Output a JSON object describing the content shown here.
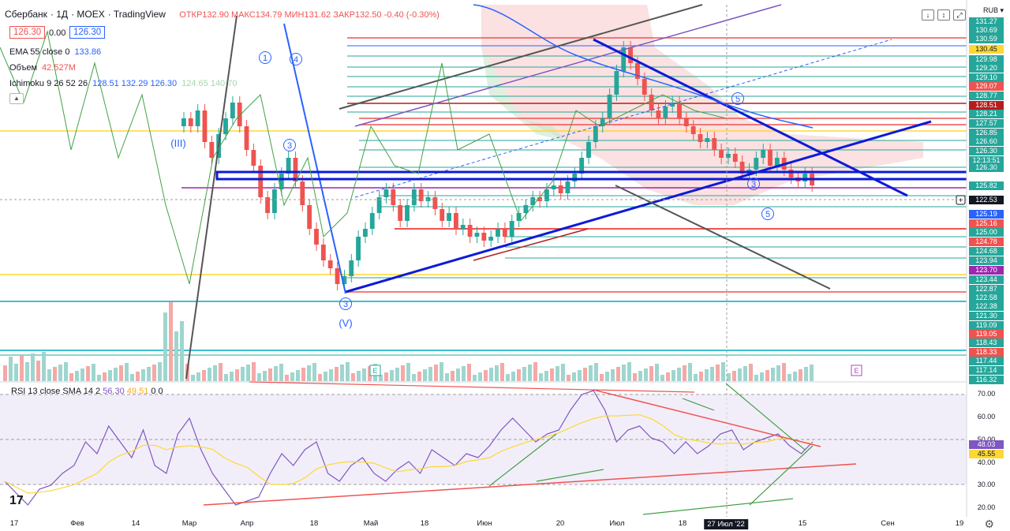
{
  "header": {
    "symbol": "Сбербанк",
    "interval": "1Д",
    "exchange": "MOEX",
    "source": "TradingView",
    "open_label": "ОТКР",
    "open": "132.90",
    "high_label": "МАКС",
    "high": "134.79",
    "low_label": "МИН",
    "low": "131.62",
    "close_label": "ЗАКР",
    "close": "132.50",
    "change": "-0.40 (-0.30%)"
  },
  "price_boxes": {
    "left": "126.30",
    "mid": "0.00",
    "right": "126.30"
  },
  "indicators": [
    {
      "name": "EMA 55 close 0",
      "value": "133.86",
      "color": "#2962ff"
    },
    {
      "name": "Объем",
      "value": "42.527M",
      "color": "#ef5350"
    },
    {
      "name": "Ichimoku 9 26 52 26",
      "value": "128.51 132.29 126.30",
      "color": "#2962ff",
      "extra": "124.65 140.70"
    }
  ],
  "rsi": {
    "label": "RSI 13 close SMA 14 2",
    "value": "56.30",
    "value2": "49.51",
    "zeros": "0 0"
  },
  "scale_label": "RUB",
  "top_buttons": [
    "↓",
    "↕",
    "⤢"
  ],
  "price_axis": [
    {
      "v": "131.27",
      "bg": "#26a69a"
    },
    {
      "v": "130.69",
      "bg": "#26a69a"
    },
    {
      "v": "130.59",
      "bg": "#26a69a"
    },
    {
      "v": "130.45",
      "bg": "#fdd835",
      "dark": true
    },
    {
      "v": "129.98",
      "bg": "#26a69a"
    },
    {
      "v": "129.20",
      "bg": "#26a69a"
    },
    {
      "v": "129.10",
      "bg": "#26a69a"
    },
    {
      "v": "129.07",
      "bg": "#ef5350"
    },
    {
      "v": "128.77",
      "bg": "#26a69a"
    },
    {
      "v": "128.51",
      "bg": "#b71c1c"
    },
    {
      "v": "128.21",
      "bg": "#26a69a"
    },
    {
      "v": "127.57",
      "bg": "#26a69a"
    },
    {
      "v": "126.85",
      "bg": "#26a69a"
    },
    {
      "v": "126.60",
      "bg": "#26a69a"
    },
    {
      "v": "126.30",
      "bg": "#26a69a"
    },
    {
      "v": "12:13:51",
      "bg": "#26a69a"
    },
    {
      "v": "126.30",
      "bg": "#26a69a"
    },
    {
      "v": "125.82",
      "bg": "#26a69a"
    },
    {
      "v": "122.53",
      "bg": "#131722"
    },
    {
      "v": "125.19",
      "bg": "#2962ff"
    },
    {
      "v": "125.16",
      "bg": "#ef5350"
    },
    {
      "v": "125.00",
      "bg": "#26a69a"
    },
    {
      "v": "124.78",
      "bg": "#ef5350"
    },
    {
      "v": "124.68",
      "bg": "#26a69a"
    },
    {
      "v": "123.94",
      "bg": "#26a69a"
    },
    {
      "v": "123.70",
      "bg": "#9c27b0"
    },
    {
      "v": "123.44",
      "bg": "#26a69a"
    },
    {
      "v": "122.87",
      "bg": "#26a69a"
    },
    {
      "v": "122.58",
      "bg": "#26a69a"
    },
    {
      "v": "122.38",
      "bg": "#26a69a"
    },
    {
      "v": "121.30",
      "bg": "#26a69a"
    },
    {
      "v": "119.09",
      "bg": "#26a69a"
    },
    {
      "v": "119.05",
      "bg": "#ef5350"
    },
    {
      "v": "118.43",
      "bg": "#26a69a"
    },
    {
      "v": "118.33",
      "bg": "#ef5350"
    },
    {
      "v": "117.44",
      "bg": "#26a69a"
    },
    {
      "v": "117.14",
      "bg": "#26a69a"
    },
    {
      "v": "116.32",
      "bg": "#26a69a"
    }
  ],
  "rsi_axis": [
    {
      "v": "70.00"
    },
    {
      "v": "60.00"
    },
    {
      "v": "50.00"
    },
    {
      "v": "48.03",
      "bg": "#7e57c2"
    },
    {
      "v": "45.55",
      "bg": "#fdd835",
      "dark": true
    },
    {
      "v": "40.00"
    },
    {
      "v": "30.00"
    },
    {
      "v": "20.00"
    }
  ],
  "time_axis": [
    {
      "label": "17"
    },
    {
      "label": "Фев"
    },
    {
      "label": "14"
    },
    {
      "label": "Мар"
    },
    {
      "label": "Апр"
    },
    {
      "label": "18"
    },
    {
      "label": "Май"
    },
    {
      "label": "18"
    },
    {
      "label": "Июн"
    },
    {
      "label": "20"
    },
    {
      "label": "Июл"
    },
    {
      "label": "18"
    },
    {
      "label": "27 Июл '22",
      "highlight": true
    },
    {
      "label": "15"
    },
    {
      "label": "Сен"
    },
    {
      "label": "19"
    }
  ],
  "wave_labels": [
    "(III)",
    "1",
    "4",
    "3",
    "3",
    "5",
    "(V)",
    "3",
    "5"
  ],
  "event_badge": "E",
  "colors": {
    "up": "#26a69a",
    "down": "#ef5350",
    "trend": "#0d1bd6",
    "rsi": "#7e57c2",
    "rsi_ma": "#fdd835"
  }
}
